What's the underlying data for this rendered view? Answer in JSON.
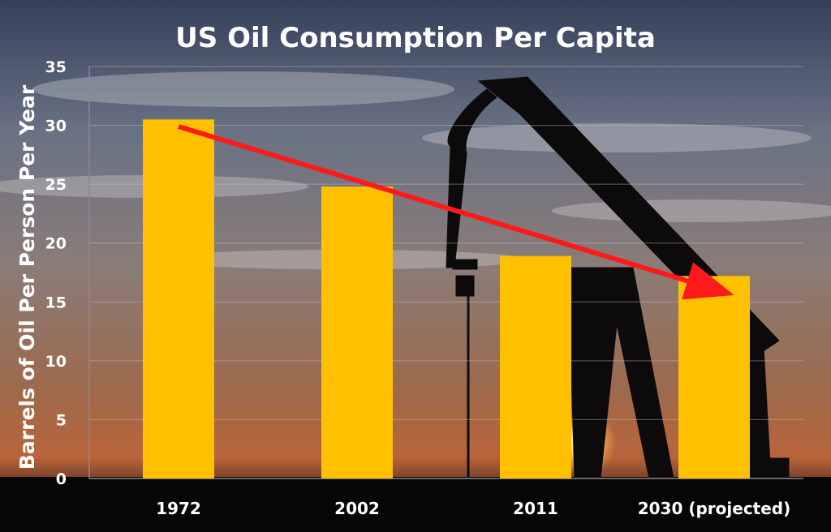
{
  "chart_data": {
    "type": "bar",
    "title": "US Oil Consumption Per Capita",
    "ylabel": "Barrels of Oil Per Person Per Year",
    "xlabel": "",
    "categories": [
      "1972",
      "2002",
      "2011",
      "2030 (projected)"
    ],
    "values": [
      30.5,
      24.8,
      18.9,
      17.2
    ],
    "ylim": [
      0,
      35
    ],
    "yticks": [
      0,
      5,
      10,
      15,
      20,
      25,
      30,
      35
    ],
    "grid": true,
    "bar_color": "#FFC000",
    "trend_arrow": {
      "from_category": "1972",
      "to_category": "2030 (projected)",
      "from_value": 29.9,
      "to_value": 16.3,
      "color": "#FF1A1A"
    }
  }
}
